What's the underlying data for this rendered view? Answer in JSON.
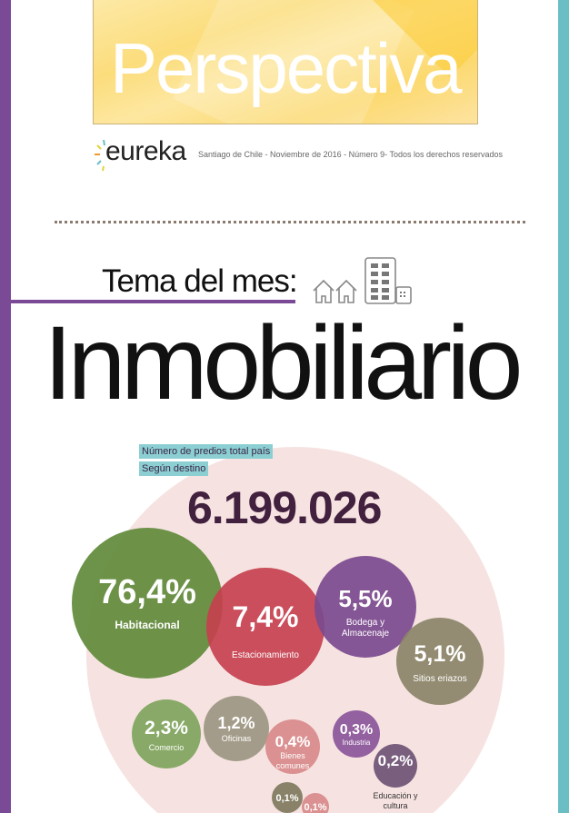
{
  "header": {
    "title": "Perspectiva"
  },
  "logo": {
    "text": "eureka"
  },
  "subline": "Santiago de Chile - Noviembre de 2016 - Número 9- Todos los derechos reservados",
  "topic": {
    "label": "Tema del mes:",
    "title": "Inmobiliario"
  },
  "colors": {
    "left_bar": "#7b4a96",
    "right_bar": "#6bbfc4",
    "tag": "#8ccfd3",
    "total": "#42213f",
    "background_circle": "#f6e3e1"
  },
  "chart_data": {
    "type": "bubble",
    "title": "Número de predios total país",
    "subtitle": "Según destino",
    "total": "6.199.026",
    "items": [
      {
        "label": "Habitacional",
        "value": 76.4,
        "text": "76,4%",
        "color": "#5f8a3a"
      },
      {
        "label": "Estacionamiento",
        "value": 7.4,
        "text": "7,4%",
        "color": "#c5414f"
      },
      {
        "label": "Bodega y Almacenaje",
        "value": 5.5,
        "text": "5,5%",
        "color": "#7b4a8e"
      },
      {
        "label": "Sitios eriazos",
        "value": 5.1,
        "text": "5,1%",
        "color": "#8a8468"
      },
      {
        "label": "Comercio",
        "value": 2.3,
        "text": "2,3%",
        "color": "#7ea45c"
      },
      {
        "label": "Oficinas",
        "value": 1.2,
        "text": "1,2%",
        "color": "#9c9682"
      },
      {
        "label": "Bienes comunes",
        "value": 0.4,
        "text": "0,4%",
        "color": "#d88a8a"
      },
      {
        "label": "Industria",
        "value": 0.3,
        "text": "0,3%",
        "color": "#8a559a"
      },
      {
        "label": "Educación y cultura",
        "value": 0.2,
        "text": "0,2%",
        "color": "#6e5275"
      },
      {
        "label": "",
        "value": 0.1,
        "text": "0,1%",
        "color": "#7f7a5e"
      },
      {
        "label": "",
        "value": 0.1,
        "text": "0,1%",
        "color": "#d88a8a"
      }
    ]
  }
}
